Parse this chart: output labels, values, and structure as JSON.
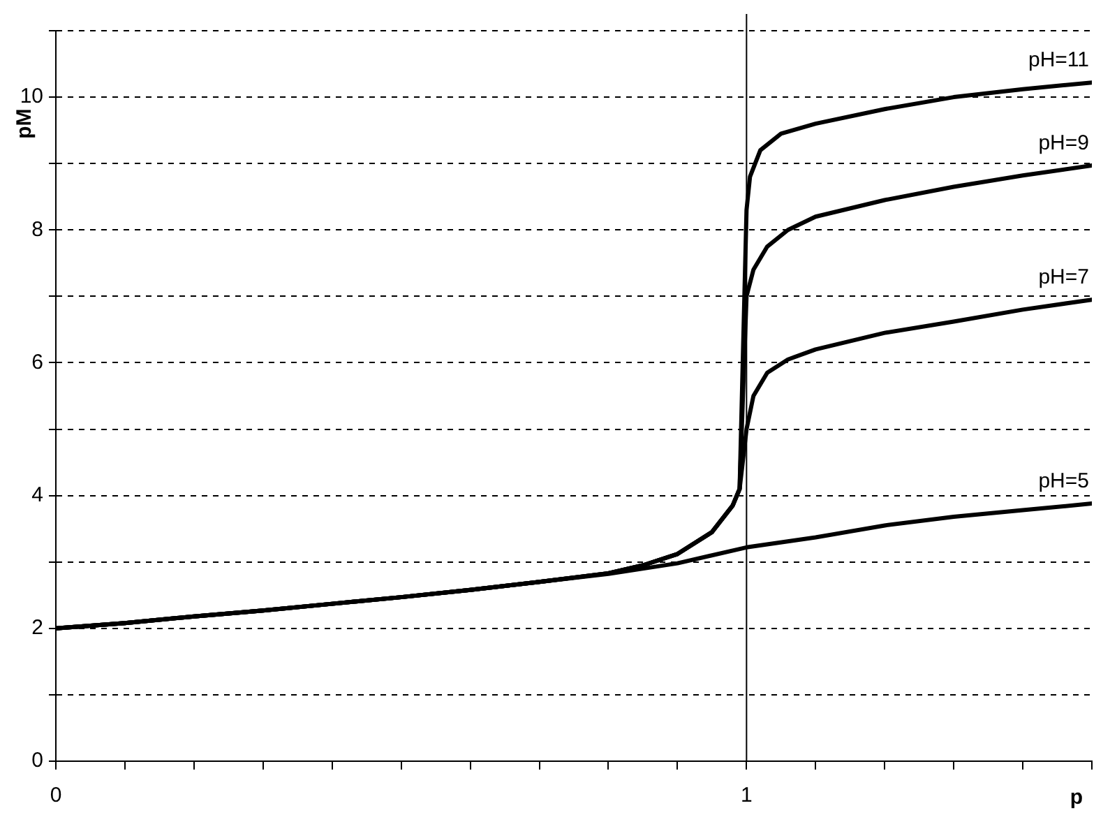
{
  "chart_data": {
    "type": "line",
    "xlabel": "p",
    "ylabel": "pM",
    "xlim": [
      0,
      1.5
    ],
    "ylim": [
      0,
      11
    ],
    "xticks": [
      0,
      {
        "value": 0.1,
        "label": null
      },
      {
        "value": 0.2,
        "label": null
      },
      {
        "value": 0.3,
        "label": null
      },
      {
        "value": 0.4,
        "label": null
      },
      {
        "value": 0.5,
        "label": null
      },
      {
        "value": 0.6,
        "label": null
      },
      {
        "value": 0.7,
        "label": null
      },
      {
        "value": 0.8,
        "label": null
      },
      {
        "value": 0.9,
        "label": null
      },
      1,
      {
        "value": 1.1,
        "label": null
      },
      {
        "value": 1.2,
        "label": null
      },
      {
        "value": 1.3,
        "label": null
      },
      {
        "value": 1.4,
        "label": null
      },
      {
        "value": 1.5,
        "label": null
      }
    ],
    "yticks": [
      0,
      {
        "value": 1,
        "label": null
      },
      2,
      {
        "value": 3,
        "label": null
      },
      4,
      {
        "value": 5,
        "label": null
      },
      6,
      {
        "value": 7,
        "label": null
      },
      8,
      {
        "value": 9,
        "label": null
      },
      10,
      {
        "value": 11,
        "label": null
      }
    ],
    "grid": "y",
    "legend": false,
    "marker": "none",
    "line_style": "solid",
    "ref_lines": [
      {
        "axis": "x",
        "value": 1,
        "color": "#000000"
      }
    ],
    "series": [
      {
        "name": "pH=11",
        "color": "#000000",
        "x": [
          0,
          0.1,
          0.2,
          0.3,
          0.4,
          0.5,
          0.6,
          0.7,
          0.8,
          0.85,
          0.9,
          0.95,
          0.98,
          0.99,
          1.0,
          1.005,
          1.02,
          1.05,
          1.1,
          1.2,
          1.3,
          1.4,
          1.5
        ],
        "values": [
          2.0,
          2.08,
          2.18,
          2.27,
          2.37,
          2.47,
          2.58,
          2.7,
          2.83,
          2.95,
          3.12,
          3.45,
          3.85,
          4.1,
          8.3,
          8.8,
          9.2,
          9.45,
          9.6,
          9.82,
          10.0,
          10.12,
          10.22
        ]
      },
      {
        "name": "pH=9",
        "color": "#000000",
        "x": [
          0,
          0.1,
          0.2,
          0.3,
          0.4,
          0.5,
          0.6,
          0.7,
          0.8,
          0.85,
          0.9,
          0.95,
          0.98,
          0.99,
          1.0,
          1.01,
          1.03,
          1.06,
          1.1,
          1.2,
          1.3,
          1.4,
          1.5
        ],
        "values": [
          2.0,
          2.08,
          2.18,
          2.27,
          2.37,
          2.47,
          2.58,
          2.7,
          2.83,
          2.95,
          3.12,
          3.45,
          3.85,
          4.1,
          7.0,
          7.4,
          7.75,
          8.0,
          8.2,
          8.45,
          8.65,
          8.82,
          8.97
        ]
      },
      {
        "name": "pH=7",
        "color": "#000000",
        "x": [
          0,
          0.1,
          0.2,
          0.3,
          0.4,
          0.5,
          0.6,
          0.7,
          0.8,
          0.85,
          0.9,
          0.95,
          0.98,
          0.99,
          1.0,
          1.01,
          1.03,
          1.06,
          1.1,
          1.2,
          1.3,
          1.4,
          1.5
        ],
        "values": [
          2.0,
          2.08,
          2.18,
          2.27,
          2.37,
          2.47,
          2.58,
          2.7,
          2.83,
          2.95,
          3.12,
          3.45,
          3.85,
          4.1,
          5.0,
          5.5,
          5.85,
          6.05,
          6.2,
          6.45,
          6.62,
          6.8,
          6.95
        ]
      },
      {
        "name": "pH=5",
        "color": "#000000",
        "x": [
          0,
          0.1,
          0.2,
          0.3,
          0.4,
          0.5,
          0.6,
          0.7,
          0.8,
          0.9,
          1.0,
          1.1,
          1.2,
          1.3,
          1.4,
          1.5
        ],
        "values": [
          2.0,
          2.08,
          2.18,
          2.27,
          2.37,
          2.47,
          2.58,
          2.7,
          2.82,
          2.98,
          3.22,
          3.37,
          3.55,
          3.68,
          3.78,
          3.88
        ]
      }
    ]
  }
}
